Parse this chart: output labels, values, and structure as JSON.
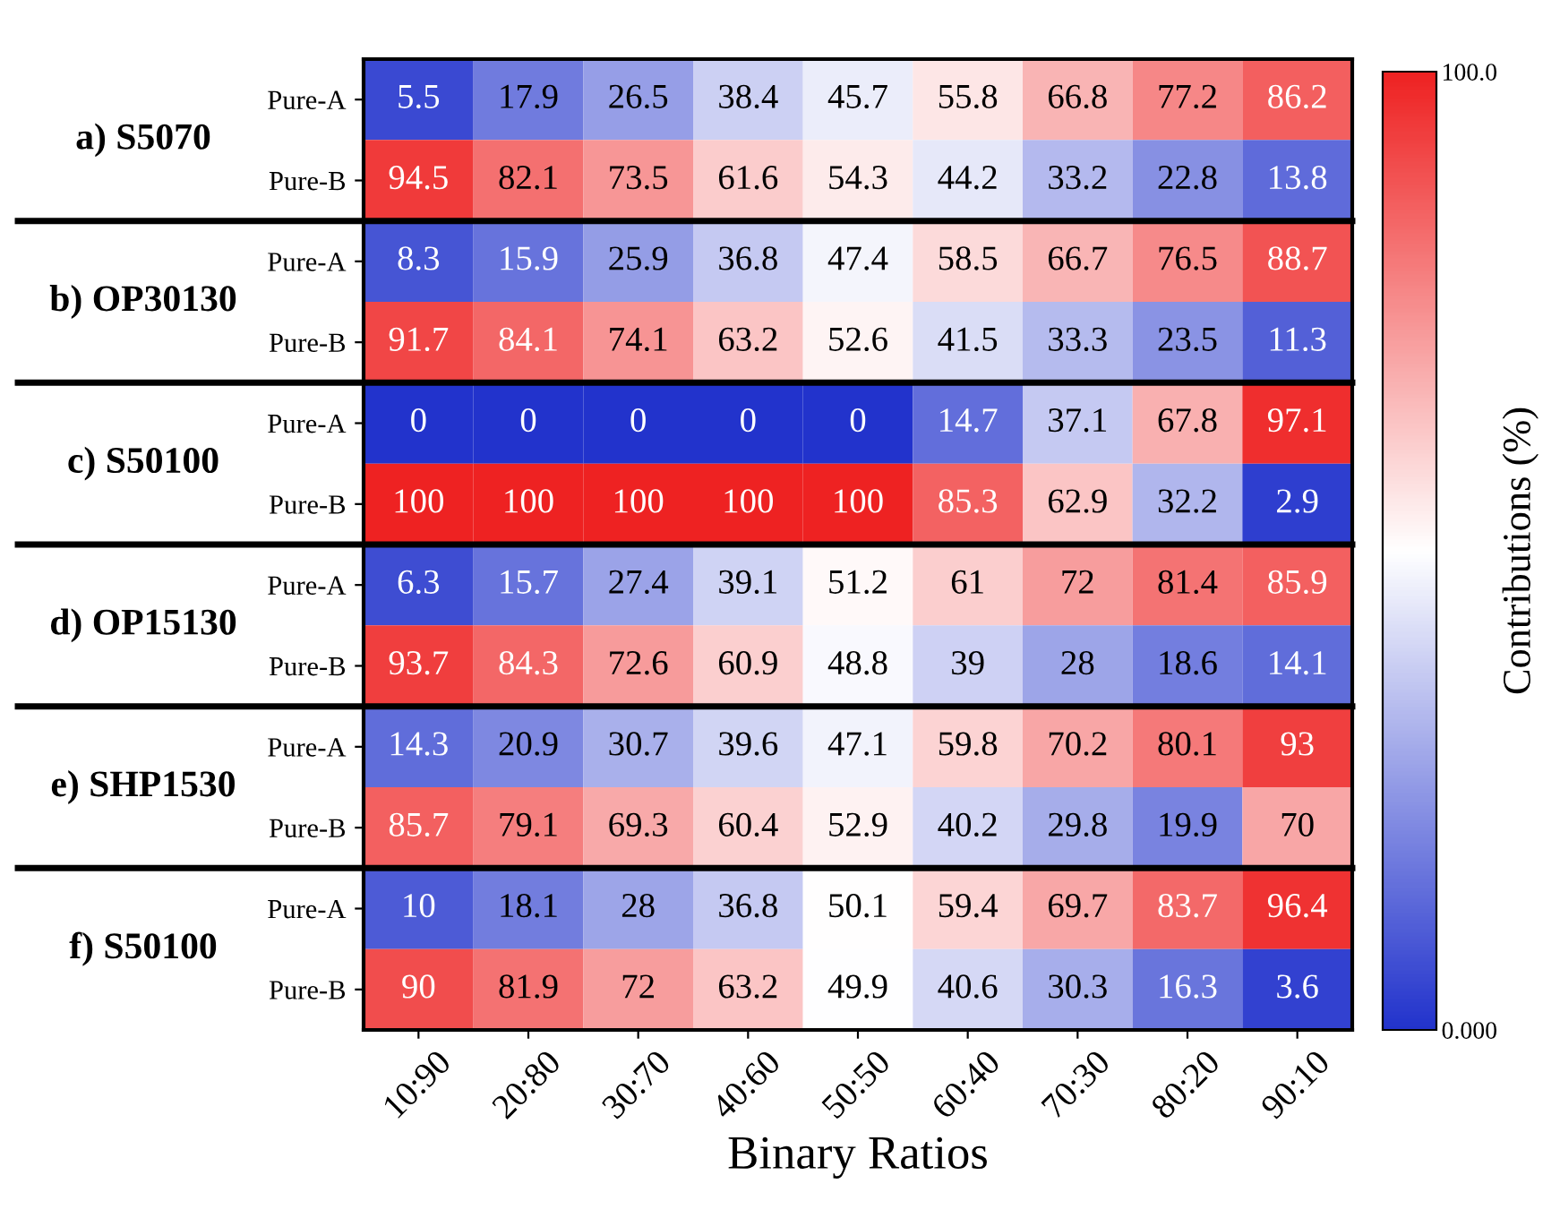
{
  "chart_data": {
    "type": "heatmap",
    "xlabel": "Binary Ratios",
    "clabel": "Contributions (%)",
    "data_labels": true,
    "categories": [
      "10:90",
      "20:80",
      "30:70",
      "40:60",
      "50:50",
      "60:40",
      "70:30",
      "80:20",
      "90:10"
    ],
    "y_categories": [
      "Pure-A",
      "Pure-B",
      "Pure-A",
      "Pure-B",
      "Pure-A",
      "Pure-B",
      "Pure-A",
      "Pure-B",
      "Pure-A",
      "Pure-B",
      "Pure-A",
      "Pure-B"
    ],
    "annotations": [
      "a) S5070",
      "b) OP30130",
      "c) S50100",
      "d) OP15130",
      "e) SHP1530",
      "f) S50100"
    ],
    "clim": [
      0,
      100
    ],
    "cticks": [
      {
        "value": 100,
        "label": "100.0"
      },
      {
        "value": 0,
        "label": "0.000"
      }
    ],
    "cells": [
      [
        5.5,
        17.9,
        26.5,
        38.4,
        45.7,
        55.8,
        66.8,
        77.2,
        86.2
      ],
      [
        94.5,
        82.1,
        73.5,
        61.6,
        54.3,
        44.2,
        33.2,
        22.8,
        13.8
      ],
      [
        8.3,
        15.9,
        25.9,
        36.8,
        47.4,
        58.5,
        66.7,
        76.5,
        88.7
      ],
      [
        91.7,
        84.1,
        74.1,
        63.2,
        52.6,
        41.5,
        33.3,
        23.5,
        11.3
      ],
      [
        0,
        0,
        0,
        0,
        0,
        14.7,
        37.1,
        67.8,
        97.1
      ],
      [
        100,
        100,
        100,
        100,
        100,
        85.3,
        62.9,
        32.2,
        2.9
      ],
      [
        6.3,
        15.7,
        27.4,
        39.1,
        51.2,
        61,
        72,
        81.4,
        85.9
      ],
      [
        93.7,
        84.3,
        72.6,
        60.9,
        48.8,
        39,
        28,
        18.6,
        14.1
      ],
      [
        14.3,
        20.9,
        30.7,
        39.6,
        47.1,
        59.8,
        70.2,
        80.1,
        93
      ],
      [
        85.7,
        79.1,
        69.3,
        60.4,
        52.9,
        40.2,
        29.8,
        19.9,
        70
      ],
      [
        10,
        18.1,
        28,
        36.8,
        50.1,
        59.4,
        69.7,
        83.7,
        96.4
      ],
      [
        90,
        81.9,
        72,
        63.2,
        49.9,
        40.6,
        30.3,
        16.3,
        3.6
      ]
    ]
  }
}
